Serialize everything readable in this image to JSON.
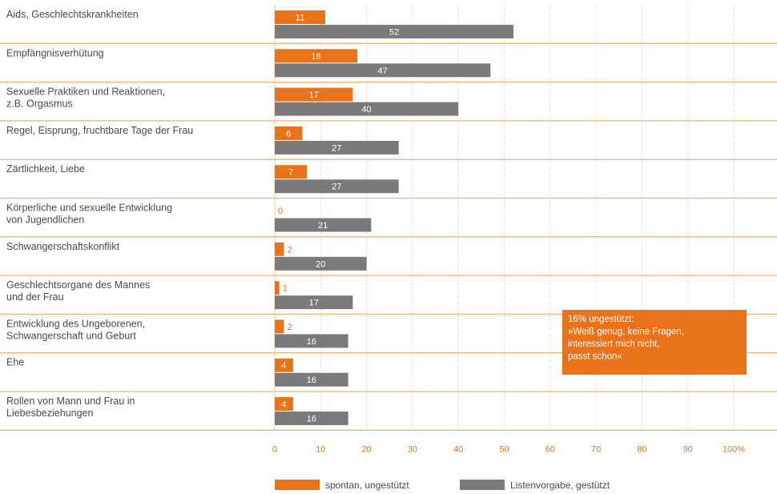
{
  "chart_data": {
    "type": "bar",
    "orientation": "horizontal",
    "categories": [
      [
        "Aids, Geschlechtskrankheiten"
      ],
      [
        "Empfängnisverhütung"
      ],
      [
        "Sexuelle Praktiken und Reaktionen,",
        "z.B. Orgasmus"
      ],
      [
        "Regel, Eisprung, fruchtbare Tage der Frau"
      ],
      [
        "Zärtlichkeit, Liebe"
      ],
      [
        "Körperliche und sexuelle Entwicklung",
        "von Jugendlichen"
      ],
      [
        "Schwangerschaftskonflikt"
      ],
      [
        "Geschlechtsorgane des Mannes",
        "und der Frau"
      ],
      [
        "Entwicklung des Ungeborenen,",
        "Schwangerschaft und Geburt"
      ],
      [
        "Ehe"
      ],
      [
        "Rollen von Mann und Frau in",
        "Liebesbeziehungen"
      ]
    ],
    "series": [
      {
        "name": "spontan, ungestützt",
        "color": "#e8731a",
        "values": [
          11,
          18,
          17,
          6,
          7,
          0,
          2,
          1,
          2,
          4,
          4
        ]
      },
      {
        "name": "Listenvorgabe, gestützt",
        "color": "#7a7a7a",
        "values": [
          52,
          47,
          40,
          27,
          27,
          21,
          20,
          17,
          16,
          16,
          16
        ]
      }
    ],
    "x_ticks": [
      "0",
      "10",
      "20",
      "30",
      "40",
      "50",
      "60",
      "70",
      "80",
      "90",
      "100%"
    ],
    "xlim": [
      0,
      100
    ],
    "grid": true,
    "legend_position": "bottom",
    "annotation": {
      "lines": [
        "16% ungestützt:",
        "»Weiß genug, keine Fragen,",
        "interessiert mich nicht,",
        "passt schon«"
      ],
      "color": "#e8731a"
    },
    "separator_color": "#f0b27a"
  }
}
